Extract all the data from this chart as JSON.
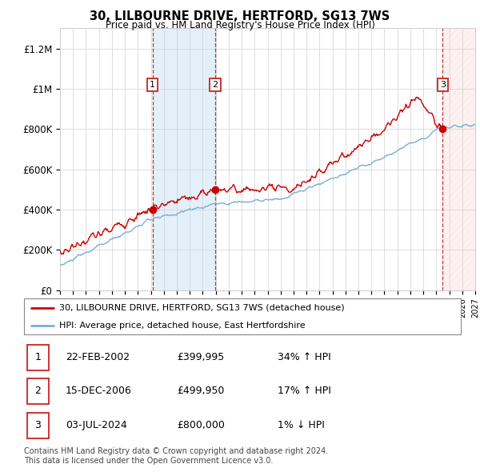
{
  "title": "30, LILBOURNE DRIVE, HERTFORD, SG13 7WS",
  "subtitle": "Price paid vs. HM Land Registry's House Price Index (HPI)",
  "ylabel_ticks": [
    "£0",
    "£200K",
    "£400K",
    "£600K",
    "£800K",
    "£1M",
    "£1.2M"
  ],
  "ytick_values": [
    0,
    200000,
    400000,
    600000,
    800000,
    1000000,
    1200000
  ],
  "ylim": [
    0,
    1300000
  ],
  "xlim_start": 1995,
  "xlim_end": 2027,
  "sale_dates": [
    2002.14,
    2006.96,
    2024.5
  ],
  "sale_prices": [
    399995,
    499950,
    800000
  ],
  "sale_labels": [
    "1",
    "2",
    "3"
  ],
  "legend_line1": "30, LILBOURNE DRIVE, HERTFORD, SG13 7WS (detached house)",
  "legend_line2": "HPI: Average price, detached house, East Hertfordshire",
  "table_rows": [
    [
      "1",
      "22-FEB-2002",
      "£399,995",
      "34% ↑ HPI"
    ],
    [
      "2",
      "15-DEC-2006",
      "£499,950",
      "17% ↑ HPI"
    ],
    [
      "3",
      "03-JUL-2024",
      "£800,000",
      "1% ↓ HPI"
    ]
  ],
  "footer": "Contains HM Land Registry data © Crown copyright and database right 2024.\nThis data is licensed under the Open Government Licence v3.0.",
  "red_color": "#cc0000",
  "blue_color": "#7aaed6",
  "shade_blue": "#ddeeff",
  "shade_red": "#ffe8e8"
}
